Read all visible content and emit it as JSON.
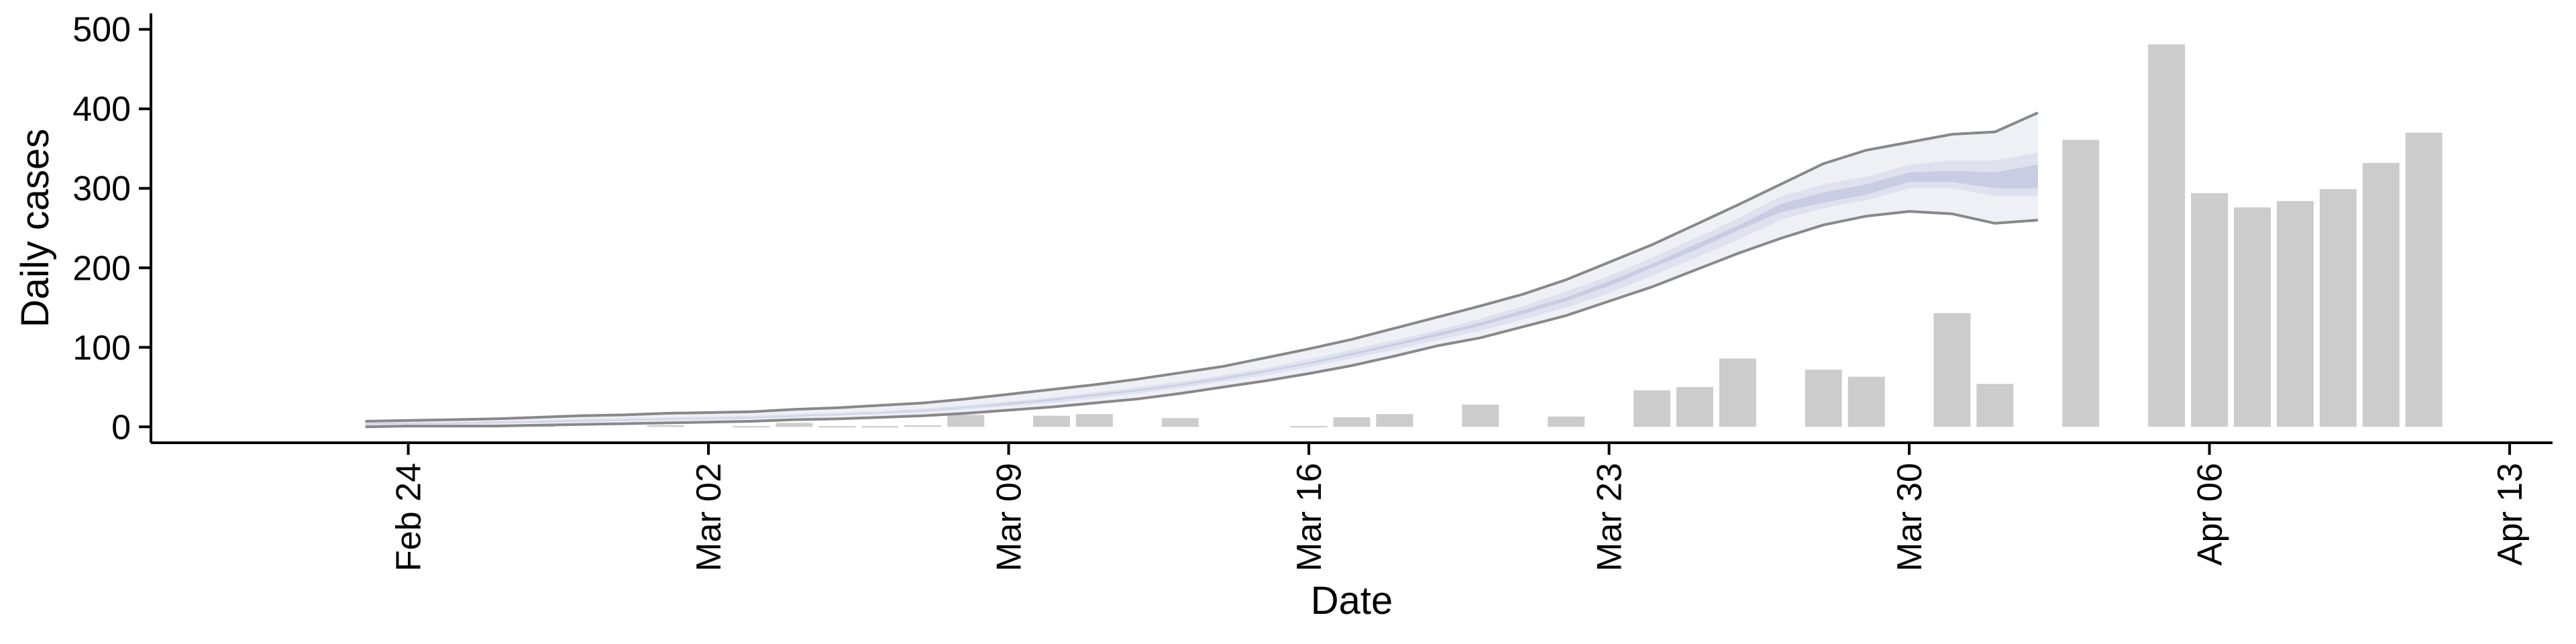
{
  "chart_data": {
    "type": "bar",
    "xlabel": "Date",
    "ylabel": "Daily cases",
    "ylim": [
      -20,
      520
    ],
    "xlim": [
      "2020-02-18",
      "2020-04-14"
    ],
    "x_ticks": [
      {
        "date": "2020-02-24",
        "label": "Feb 24"
      },
      {
        "date": "2020-03-02",
        "label": "Mar 02"
      },
      {
        "date": "2020-03-09",
        "label": "Mar 09"
      },
      {
        "date": "2020-03-16",
        "label": "Mar 16"
      },
      {
        "date": "2020-03-23",
        "label": "Mar 23"
      },
      {
        "date": "2020-03-30",
        "label": "Mar 30"
      },
      {
        "date": "2020-04-06",
        "label": "Apr 06"
      },
      {
        "date": "2020-04-13",
        "label": "Apr 13"
      }
    ],
    "y_ticks": [
      0,
      100,
      200,
      300,
      400,
      500
    ],
    "grid": false,
    "colors": {
      "bars": "#cccccc",
      "band_outer": "#eef0f6",
      "band_mid": "#dfe2ee",
      "band_inner": "#c9cde3",
      "band_lines": "#888888",
      "axis": "#000000"
    },
    "bars": {
      "dates": [
        "2020-02-27",
        "2020-03-01",
        "2020-03-03",
        "2020-03-04",
        "2020-03-05",
        "2020-03-06",
        "2020-03-07",
        "2020-03-08",
        "2020-03-10",
        "2020-03-11",
        "2020-03-13",
        "2020-03-16",
        "2020-03-17",
        "2020-03-18",
        "2020-03-20",
        "2020-03-22",
        "2020-03-24",
        "2020-03-25",
        "2020-03-26",
        "2020-03-28",
        "2020-03-29",
        "2020-03-31",
        "2020-04-01",
        "2020-04-03",
        "2020-04-05",
        "2020-04-06",
        "2020-04-07",
        "2020-04-08",
        "2020-04-09",
        "2020-04-10",
        "2020-04-11"
      ],
      "values": [
        2,
        2,
        1,
        5,
        1,
        1,
        2,
        15,
        14,
        16,
        11,
        1,
        12,
        16,
        28,
        13,
        46,
        50,
        86,
        72,
        63,
        143,
        54,
        361,
        481,
        294,
        276,
        284,
        299,
        332,
        370
      ]
    },
    "estimate": {
      "dates": [
        "2020-02-23",
        "2020-02-24",
        "2020-02-25",
        "2020-02-26",
        "2020-02-27",
        "2020-02-28",
        "2020-02-29",
        "2020-03-01",
        "2020-03-02",
        "2020-03-03",
        "2020-03-04",
        "2020-03-05",
        "2020-03-06",
        "2020-03-07",
        "2020-03-08",
        "2020-03-09",
        "2020-03-10",
        "2020-03-11",
        "2020-03-12",
        "2020-03-13",
        "2020-03-14",
        "2020-03-15",
        "2020-03-16",
        "2020-03-17",
        "2020-03-18",
        "2020-03-19",
        "2020-03-20",
        "2020-03-21",
        "2020-03-22",
        "2020-03-23",
        "2020-03-24",
        "2020-03-25",
        "2020-03-26",
        "2020-03-27",
        "2020-03-28",
        "2020-03-29",
        "2020-03-30",
        "2020-03-31",
        "2020-04-01",
        "2020-04-02"
      ],
      "outer_low": [
        0,
        1,
        1,
        1,
        2,
        3,
        4,
        5,
        6,
        7,
        9,
        10,
        12,
        14,
        17,
        21,
        25,
        30,
        35,
        42,
        50,
        58,
        67,
        77,
        89,
        102,
        112,
        126,
        140,
        158,
        176,
        197,
        218,
        237,
        254,
        265,
        271,
        268,
        256,
        260
      ],
      "outer_high": [
        7,
        8,
        9,
        10,
        12,
        14,
        15,
        17,
        18,
        19,
        22,
        24,
        27,
        30,
        35,
        41,
        47,
        53,
        60,
        68,
        76,
        87,
        98,
        110,
        124,
        138,
        152,
        167,
        185,
        207,
        229,
        254,
        279,
        305,
        331,
        348,
        358,
        368,
        371,
        395
      ],
      "mid_low": [
        2,
        3,
        3,
        4,
        5,
        6,
        7,
        8,
        9,
        10,
        12,
        14,
        16,
        18,
        22,
        26,
        30,
        36,
        42,
        49,
        57,
        65,
        75,
        86,
        97,
        109,
        121,
        135,
        150,
        168,
        190,
        212,
        235,
        260,
        275,
        285,
        300,
        300,
        290,
        290
      ],
      "mid_high": [
        5,
        6,
        6,
        7,
        8,
        10,
        11,
        12,
        13,
        14,
        16,
        18,
        20,
        23,
        27,
        32,
        37,
        43,
        50,
        57,
        65,
        74,
        85,
        97,
        109,
        122,
        136,
        152,
        170,
        190,
        213,
        237,
        262,
        290,
        305,
        315,
        330,
        335,
        335,
        345
      ],
      "inner_low": [
        3,
        4,
        4,
        5,
        6,
        7,
        8,
        9,
        10,
        11,
        13,
        15,
        17,
        20,
        24,
        28,
        33,
        39,
        45,
        52,
        60,
        69,
        79,
        90,
        102,
        114,
        127,
        142,
        158,
        177,
        200,
        222,
        247,
        270,
        282,
        292,
        308,
        308,
        300,
        300
      ],
      "inner_high": [
        4,
        5,
        5,
        6,
        7,
        8,
        9,
        10,
        11,
        12,
        14,
        16,
        18,
        21,
        25,
        30,
        35,
        41,
        47,
        54,
        62,
        71,
        81,
        93,
        105,
        118,
        131,
        147,
        163,
        183,
        205,
        229,
        253,
        280,
        295,
        305,
        320,
        322,
        320,
        330
      ]
    }
  }
}
